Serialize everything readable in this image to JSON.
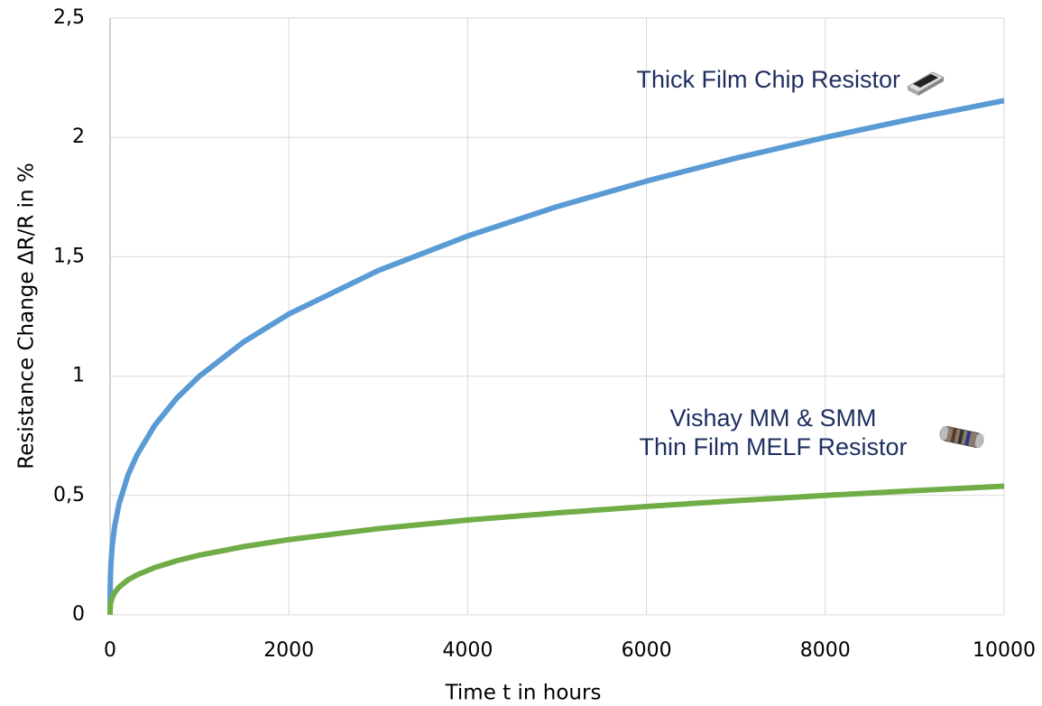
{
  "chart_data": {
    "type": "line",
    "x_label": "Time t in hours",
    "y_label": "Resistance Change ΔR/R in %",
    "x": [
      0,
      1,
      5,
      10,
      25,
      50,
      100,
      200,
      300,
      500,
      750,
      1000,
      1500,
      2000,
      3000,
      4000,
      5000,
      6000,
      7000,
      8000,
      9000,
      10000
    ],
    "series": [
      {
        "color": "#5b9bd5",
        "values": [
          0,
          0.1,
          0.171,
          0.215,
          0.292,
          0.368,
          0.464,
          0.585,
          0.669,
          0.794,
          0.909,
          1.0,
          1.145,
          1.26,
          1.442,
          1.587,
          1.71,
          1.817,
          1.913,
          2.0,
          2.08,
          2.154
        ]
      },
      {
        "color": "#70ad47",
        "values": [
          0,
          0.025,
          0.043,
          0.054,
          0.073,
          0.092,
          0.116,
          0.146,
          0.167,
          0.198,
          0.227,
          0.25,
          0.286,
          0.315,
          0.361,
          0.397,
          0.427,
          0.454,
          0.478,
          0.5,
          0.52,
          0.539
        ]
      }
    ],
    "annotations": [
      "Thick Film Chip Resistor",
      "Vishay MM & SMM",
      "Thin Film MELF Resistor"
    ],
    "xlim": [
      0,
      10000
    ],
    "ylim": [
      0,
      2.5
    ],
    "xticks": [
      0,
      2000,
      4000,
      6000,
      8000,
      10000
    ],
    "yticks": [
      0,
      {
        "value": 0.5,
        "label": "0,5"
      },
      1,
      {
        "value": 1.5,
        "label": "1,5"
      },
      2,
      {
        "value": 2.5,
        "label": "2,5"
      }
    ],
    "grid": true
  }
}
